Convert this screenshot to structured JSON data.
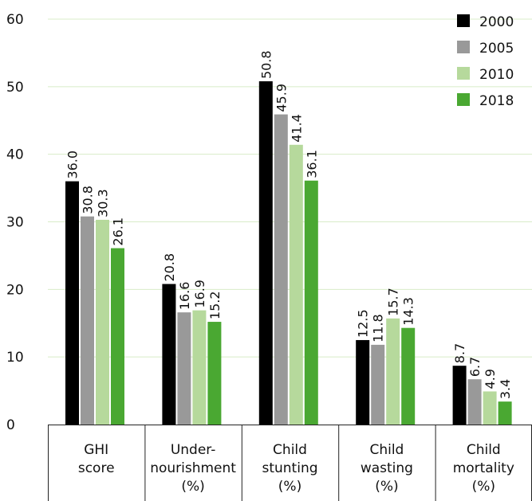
{
  "chart_data": {
    "type": "bar",
    "categories": [
      [
        "GHI",
        "score"
      ],
      [
        "Under-",
        "nourishment",
        "(%)"
      ],
      [
        "Child",
        "stunting",
        "(%)"
      ],
      [
        "Child",
        "wasting",
        "(%)"
      ],
      [
        "Child",
        "mortality",
        "(%)"
      ]
    ],
    "series": [
      {
        "name": "2000",
        "color": "#000000",
        "values": [
          36.0,
          20.8,
          50.8,
          12.5,
          8.7
        ],
        "labels": [
          "36.0",
          "20.8",
          "50.8",
          "12.5",
          "8.7"
        ]
      },
      {
        "name": "2005",
        "color": "#999999",
        "values": [
          30.8,
          16.6,
          45.9,
          11.8,
          6.7
        ],
        "labels": [
          "30.8",
          "16.6",
          "45.9",
          "11.8",
          "6.7"
        ]
      },
      {
        "name": "2010",
        "color": "#b6d99c",
        "values": [
          30.3,
          16.9,
          41.4,
          15.7,
          4.9
        ],
        "labels": [
          "30.3",
          "16.9",
          "41.4",
          "15.7",
          "4.9"
        ]
      },
      {
        "name": "2018",
        "color": "#4aa832",
        "values": [
          26.1,
          15.2,
          36.1,
          14.3,
          3.4
        ],
        "labels": [
          "26.1",
          "15.2",
          "36.1",
          "14.3",
          "3.4"
        ]
      }
    ],
    "y_ticks": [
      "0",
      "10",
      "20",
      "30",
      "40",
      "50",
      "60"
    ],
    "ylim": [
      0,
      60
    ],
    "grid": true,
    "legend_position": "top-right",
    "title": "",
    "xlabel": "",
    "ylabel": ""
  }
}
